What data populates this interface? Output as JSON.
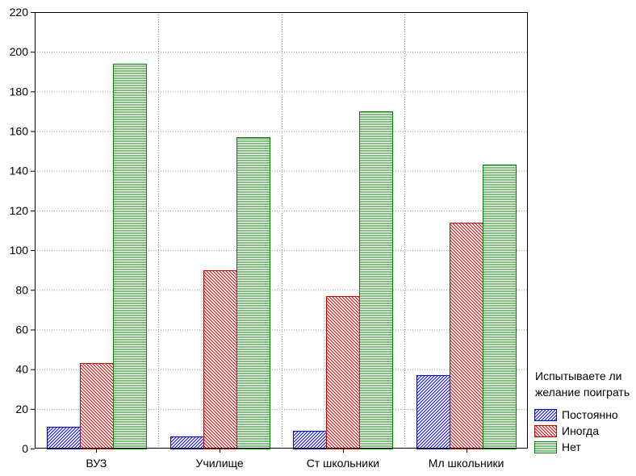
{
  "chart_data": {
    "type": "bar",
    "categories": [
      "ВУЗ",
      "Училище",
      "Ст школьники",
      "Мл школьники"
    ],
    "series": [
      {
        "name": "Постоянно",
        "values": [
          11,
          6,
          9,
          37
        ],
        "color": "#0000cc",
        "pattern": "diagonal-up"
      },
      {
        "name": "Иногда",
        "values": [
          43,
          90,
          77,
          114
        ],
        "color": "#cc0000",
        "pattern": "diagonal-down"
      },
      {
        "name": "Нет",
        "values": [
          194,
          157,
          170,
          143
        ],
        "color": "#008000",
        "pattern": "horizontal"
      }
    ],
    "ylim": [
      0,
      220
    ],
    "yticks": [
      0,
      20,
      40,
      60,
      80,
      100,
      120,
      140,
      160,
      180,
      200,
      220
    ],
    "grid": true,
    "legend": {
      "title_lines": [
        "Испытываете ли",
        "желание поиграть"
      ],
      "placement": "bottom-right"
    }
  }
}
